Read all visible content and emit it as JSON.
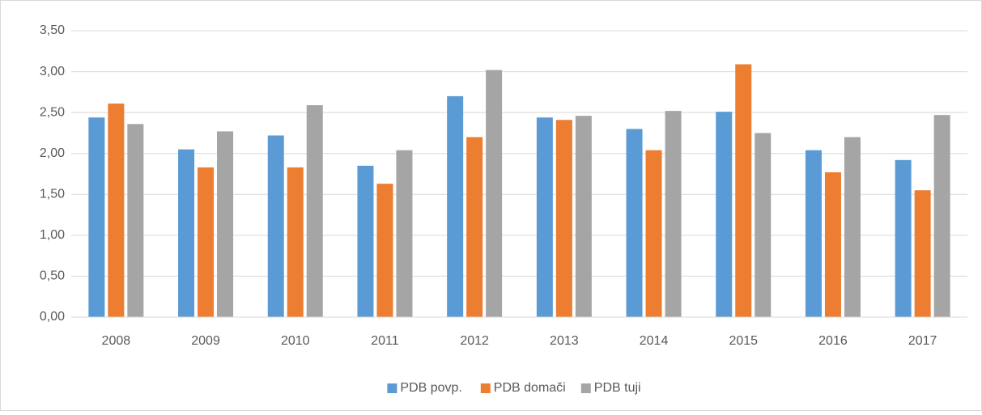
{
  "chart_data": {
    "type": "bar",
    "categories": [
      "2008",
      "2009",
      "2010",
      "2011",
      "2012",
      "2013",
      "2014",
      "2015",
      "2016",
      "2017"
    ],
    "series": [
      {
        "name": "PDB povp.",
        "color": "#5b9bd5",
        "values": [
          2.44,
          2.05,
          2.22,
          1.85,
          2.7,
          2.44,
          2.3,
          2.51,
          2.04,
          1.92
        ]
      },
      {
        "name": "PDB domači",
        "color": "#ed7d31",
        "values": [
          2.61,
          1.83,
          1.83,
          1.63,
          2.2,
          2.41,
          2.04,
          3.09,
          1.77,
          1.55
        ]
      },
      {
        "name": "PDB tuji",
        "color": "#a5a5a5",
        "values": [
          2.36,
          2.27,
          2.59,
          2.04,
          3.02,
          2.46,
          2.52,
          2.25,
          2.2,
          2.47
        ]
      }
    ],
    "ylim": [
      0,
      3.5
    ],
    "yticks": [
      {
        "value": 0,
        "label": "0,00"
      },
      {
        "value": 0.5,
        "label": "0,50"
      },
      {
        "value": 1,
        "label": "1,00"
      },
      {
        "value": 1.5,
        "label": "1,50"
      },
      {
        "value": 2,
        "label": "2,00"
      },
      {
        "value": 2.5,
        "label": "2,50"
      },
      {
        "value": 3,
        "label": "3,00"
      },
      {
        "value": 3.5,
        "label": "3,50"
      }
    ],
    "grid": true,
    "legend": "bottom"
  }
}
